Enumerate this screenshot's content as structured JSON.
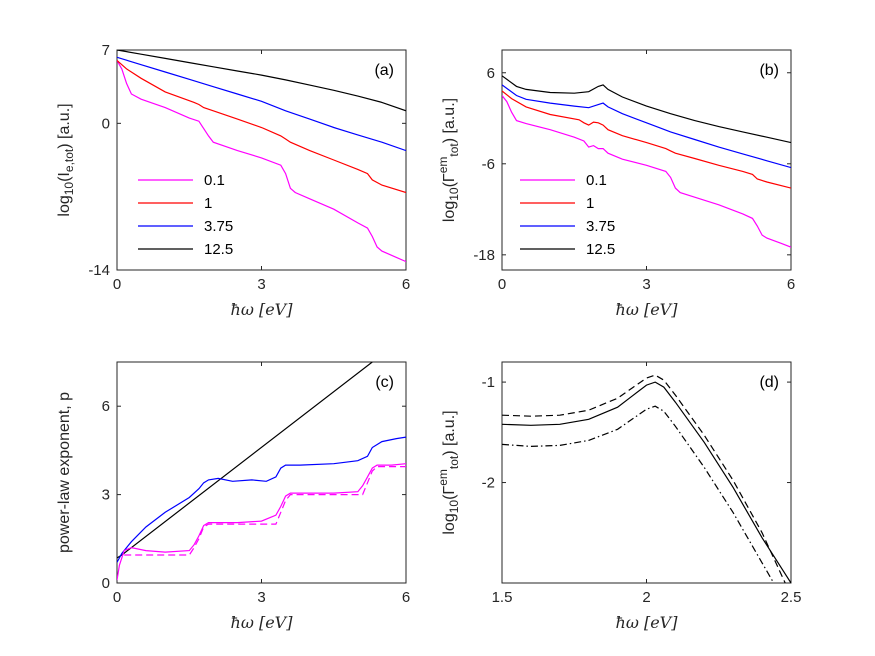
{
  "chart_data": [
    {
      "type": "line",
      "panel_label": "(a)",
      "xlabel": "ħω [eV]",
      "ylabel": "log10(Ie,tot) [a.u.]",
      "ylabel_parts": {
        "base": "log",
        "sub1": "10",
        "mid": "(I",
        "sub2": "e,tot",
        "end": ") [a.u.]"
      },
      "xlim": [
        0,
        6
      ],
      "ylim": [
        -14,
        7
      ],
      "xticks": [
        0,
        3,
        6
      ],
      "xtick_labels": [
        "0",
        "3",
        "6"
      ],
      "yticks": [
        -14,
        0,
        7
      ],
      "ytick_labels": [
        "-14",
        "0",
        "7"
      ],
      "legend": [
        "0.1",
        "1",
        "3.75",
        "12.5"
      ],
      "series": [
        {
          "name": "0.1",
          "color": "#ff00ff",
          "style": "solid",
          "x": [
            0,
            0.1,
            0.2,
            0.3,
            0.5,
            1.0,
            1.5,
            1.7,
            1.8,
            1.9,
            2.0,
            2.5,
            3.0,
            3.4,
            3.5,
            3.6,
            3.7,
            4.0,
            4.5,
            5.0,
            5.2,
            5.3,
            5.4,
            5.5,
            5.8,
            6.0
          ],
          "y": [
            6,
            5.2,
            3.8,
            2.8,
            2.3,
            1.5,
            0.5,
            0.2,
            -0.5,
            -1.2,
            -1.8,
            -2.6,
            -3.3,
            -4.0,
            -4.8,
            -6.2,
            -6.6,
            -7.2,
            -8.2,
            -9.5,
            -10,
            -10.8,
            -11.8,
            -12.2,
            -12.8,
            -13.2
          ]
        },
        {
          "name": "1",
          "color": "#ff0000",
          "style": "solid",
          "x": [
            0,
            0.2,
            0.5,
            1.0,
            1.6,
            1.7,
            1.8,
            2.0,
            2.5,
            3.0,
            3.4,
            3.5,
            3.6,
            4.0,
            4.5,
            5.0,
            5.2,
            5.3,
            5.5,
            6.0
          ],
          "y": [
            6,
            5.2,
            4.3,
            3.0,
            2.0,
            1.8,
            1.5,
            1.2,
            0.4,
            -0.4,
            -1.2,
            -1.5,
            -1.8,
            -2.6,
            -3.5,
            -4.4,
            -4.8,
            -5.4,
            -5.9,
            -6.6
          ]
        },
        {
          "name": "3.75",
          "color": "#0000ff",
          "style": "solid",
          "x": [
            0,
            0.5,
            1,
            1.5,
            2,
            2.5,
            3,
            3.5,
            4,
            4.5,
            5,
            5.5,
            6
          ],
          "y": [
            6.3,
            5.6,
            4.9,
            4.2,
            3.5,
            2.8,
            2.1,
            1.2,
            0.4,
            -0.4,
            -1.1,
            -1.8,
            -2.6
          ]
        },
        {
          "name": "12.5",
          "color": "#000000",
          "style": "solid",
          "x": [
            0,
            0.5,
            1,
            1.5,
            2,
            2.5,
            3,
            3.5,
            4,
            4.5,
            5,
            5.5,
            6
          ],
          "y": [
            7.0,
            6.6,
            6.2,
            5.8,
            5.4,
            5.0,
            4.6,
            4.15,
            3.65,
            3.15,
            2.6,
            2.0,
            1.2
          ]
        }
      ]
    },
    {
      "type": "line",
      "panel_label": "(b)",
      "xlabel": "ħω [eV]",
      "ylabel": "log10(Γtot em) [a.u.]",
      "ylabel_parts": {
        "base": "log",
        "sub1": "10",
        "mid": "(Γ",
        "sup": "em",
        "sub2": "tot",
        "end": ") [a.u.]"
      },
      "xlim": [
        0,
        6
      ],
      "ylim": [
        -20,
        9
      ],
      "xticks": [
        0,
        3,
        6
      ],
      "xtick_labels": [
        "0",
        "3",
        "6"
      ],
      "yticks": [
        -18,
        -6,
        6
      ],
      "ytick_labels": [
        "-18",
        "-6",
        "6"
      ],
      "legend": [
        "0.1",
        "1",
        "3.75",
        "12.5"
      ],
      "series": [
        {
          "name": "0.1",
          "color": "#ff00ff",
          "style": "solid",
          "x": [
            0,
            0.1,
            0.2,
            0.3,
            0.5,
            1.0,
            1.5,
            1.7,
            1.8,
            1.9,
            2.0,
            2.1,
            2.2,
            2.5,
            3.0,
            3.4,
            3.5,
            3.6,
            3.7,
            4.0,
            4.5,
            5.0,
            5.2,
            5.3,
            5.4,
            5.5,
            5.8,
            6.0
          ],
          "y": [
            3,
            2.2,
            0.8,
            -0.3,
            -0.7,
            -1.5,
            -2.5,
            -3.0,
            -3.8,
            -3.6,
            -4.0,
            -4.0,
            -4.6,
            -5.4,
            -6.2,
            -7.0,
            -7.8,
            -9.2,
            -9.8,
            -10.4,
            -11.4,
            -12.6,
            -13.2,
            -14.2,
            -15.4,
            -15.8,
            -16.5,
            -17.0
          ]
        },
        {
          "name": "1",
          "color": "#ff0000",
          "style": "solid",
          "x": [
            0,
            0.2,
            0.5,
            1.0,
            1.6,
            1.7,
            1.8,
            1.9,
            2.0,
            2.1,
            2.2,
            2.5,
            3.0,
            3.4,
            3.5,
            3.6,
            4.0,
            4.5,
            5.0,
            5.2,
            5.3,
            5.5,
            6.0
          ],
          "y": [
            3.6,
            2.6,
            1.5,
            0.5,
            -0.2,
            -0.6,
            -0.9,
            -0.5,
            -0.6,
            -0.9,
            -1.5,
            -2.3,
            -3.2,
            -4.0,
            -4.3,
            -4.6,
            -5.3,
            -6.2,
            -7.0,
            -7.4,
            -8.0,
            -8.4,
            -9.2
          ]
        },
        {
          "name": "3.75",
          "color": "#0000ff",
          "style": "solid",
          "x": [
            0,
            0.3,
            0.5,
            1.0,
            1.5,
            1.8,
            2.0,
            2.1,
            2.2,
            2.5,
            3.0,
            3.5,
            4.0,
            4.5,
            5.0,
            5.5,
            6.0
          ],
          "y": [
            4.4,
            3.0,
            2.5,
            2.0,
            1.6,
            1.4,
            1.8,
            2.0,
            1.5,
            0.6,
            -0.6,
            -1.8,
            -2.8,
            -3.8,
            -4.7,
            -5.6,
            -6.5
          ]
        },
        {
          "name": "12.5",
          "color": "#000000",
          "style": "solid",
          "x": [
            0,
            0.3,
            0.5,
            1.0,
            1.5,
            1.8,
            2.0,
            2.1,
            2.2,
            2.5,
            3.0,
            3.5,
            4.0,
            4.5,
            5.0,
            5.5,
            6.0
          ],
          "y": [
            5.6,
            4.2,
            3.8,
            3.4,
            3.3,
            3.5,
            4.2,
            4.4,
            3.8,
            2.8,
            1.6,
            0.6,
            -0.3,
            -1.1,
            -1.8,
            -2.5,
            -3.2
          ]
        }
      ]
    },
    {
      "type": "line",
      "panel_label": "(c)",
      "xlabel": "ħω [eV]",
      "ylabel": "power-law exponent, p",
      "xlim": [
        0,
        6
      ],
      "ylim": [
        0,
        7.5
      ],
      "xticks": [
        0,
        3,
        6
      ],
      "xtick_labels": [
        "0",
        "3",
        "6"
      ],
      "yticks": [
        0,
        3,
        6
      ],
      "ytick_labels": [
        "0",
        "3",
        "6"
      ],
      "series": [
        {
          "name": "12.5",
          "color": "#000000",
          "style": "solid",
          "x": [
            0,
            0.1,
            5.3
          ],
          "y": [
            0.85,
            0.95,
            7.5
          ]
        },
        {
          "name": "3.75",
          "color": "#0000ff",
          "style": "solid",
          "x": [
            0,
            0.1,
            0.3,
            0.6,
            1.0,
            1.5,
            1.7,
            1.8,
            1.9,
            2.1,
            2.4,
            2.8,
            3.1,
            3.3,
            3.4,
            3.5,
            3.8,
            4.5,
            5.0,
            5.2,
            5.3,
            5.5,
            5.8,
            6.0
          ],
          "y": [
            0.7,
            1.0,
            1.4,
            1.9,
            2.4,
            2.9,
            3.2,
            3.4,
            3.5,
            3.55,
            3.45,
            3.5,
            3.45,
            3.6,
            3.9,
            4.0,
            4.0,
            4.05,
            4.15,
            4.3,
            4.6,
            4.8,
            4.9,
            4.95
          ]
        },
        {
          "name": "0.1",
          "color": "#ff00ff",
          "style": "solid",
          "x": [
            0,
            0.05,
            0.15,
            0.3,
            0.6,
            1.0,
            1.5,
            1.6,
            1.7,
            1.8,
            1.9,
            2.1,
            2.5,
            3.0,
            3.3,
            3.4,
            3.5,
            3.6,
            3.8,
            4.5,
            5.0,
            5.1,
            5.2,
            5.3,
            5.4,
            5.5,
            5.7,
            6.0
          ],
          "y": [
            0.1,
            0.6,
            1.1,
            1.2,
            1.1,
            1.05,
            1.1,
            1.3,
            1.6,
            1.95,
            2.05,
            2.05,
            2.05,
            2.1,
            2.3,
            2.6,
            2.95,
            3.05,
            3.05,
            3.05,
            3.1,
            3.3,
            3.6,
            3.9,
            4.0,
            4.0,
            4.0,
            4.05
          ]
        },
        {
          "name": "0.1 approx",
          "color": "#ff00ff",
          "style": "dashed",
          "x": [
            0.15,
            1.5,
            1.6,
            1.7,
            1.8,
            1.9,
            3.3,
            3.4,
            3.5,
            3.6,
            5.1,
            5.2,
            5.3,
            5.4,
            6.0
          ],
          "y": [
            0.95,
            0.95,
            1.2,
            1.5,
            1.9,
            2.0,
            2.0,
            2.4,
            2.8,
            3.0,
            3.0,
            3.4,
            3.8,
            3.95,
            3.95
          ]
        }
      ]
    },
    {
      "type": "line",
      "panel_label": "(d)",
      "xlabel": "ħω [eV]",
      "ylabel": "log10(Γtot em) [a.u.]",
      "ylabel_parts": {
        "base": "log",
        "sub1": "10",
        "mid": "(Γ",
        "sup": "em",
        "sub2": "tot",
        "end": ") [a.u.]"
      },
      "xlim": [
        1.5,
        2.5
      ],
      "ylim": [
        -3.0,
        -0.8
      ],
      "xticks": [
        1.5,
        2,
        2.5
      ],
      "xtick_labels": [
        "1.5",
        "2",
        "2.5"
      ],
      "yticks": [
        -1,
        -2
      ],
      "ytick_labels": [
        "-1",
        "-2"
      ],
      "series": [
        {
          "name": "solid",
          "color": "#000000",
          "style": "solid",
          "x": [
            1.5,
            1.6,
            1.7,
            1.8,
            1.9,
            1.95,
            2.0,
            2.03,
            2.06,
            2.1,
            2.2,
            2.3,
            2.4,
            2.5
          ],
          "y": [
            -1.42,
            -1.43,
            -1.42,
            -1.37,
            -1.25,
            -1.14,
            -1.03,
            -1.0,
            -1.05,
            -1.2,
            -1.6,
            -2.05,
            -2.55,
            -3.0
          ]
        },
        {
          "name": "dashed",
          "color": "#000000",
          "style": "dashed",
          "x": [
            1.5,
            1.6,
            1.7,
            1.8,
            1.9,
            1.95,
            2.0,
            2.03,
            2.06,
            2.1,
            2.2,
            2.3,
            2.4,
            2.48
          ],
          "y": [
            -1.33,
            -1.34,
            -1.33,
            -1.28,
            -1.16,
            -1.06,
            -0.96,
            -0.93,
            -0.98,
            -1.13,
            -1.53,
            -1.98,
            -2.5,
            -3.0
          ]
        },
        {
          "name": "dash-dot",
          "color": "#000000",
          "style": "dashdot",
          "x": [
            1.5,
            1.6,
            1.7,
            1.8,
            1.9,
            1.95,
            2.0,
            2.03,
            2.06,
            2.1,
            2.2,
            2.3,
            2.4,
            2.44
          ],
          "y": [
            -1.62,
            -1.64,
            -1.63,
            -1.58,
            -1.47,
            -1.37,
            -1.27,
            -1.24,
            -1.29,
            -1.44,
            -1.85,
            -2.3,
            -2.8,
            -3.0
          ]
        }
      ]
    }
  ]
}
